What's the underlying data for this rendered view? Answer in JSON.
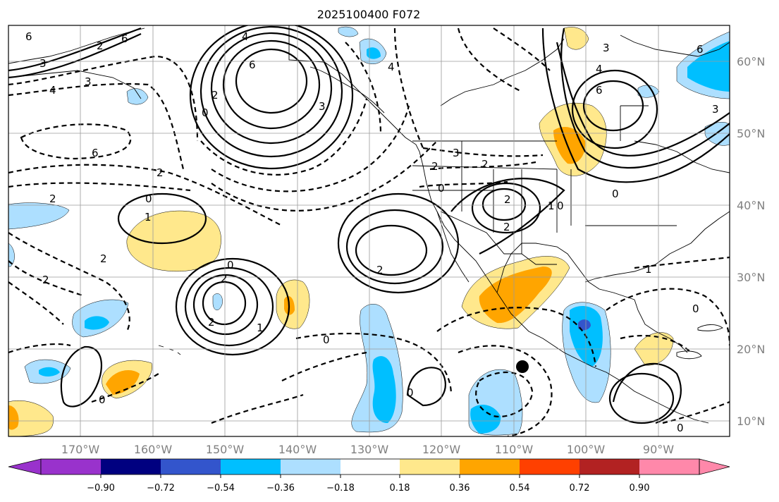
{
  "title": "2025100400 F072",
  "colors": {
    "purple": "#9932cc",
    "navy": "#000080",
    "royal": "#3355cc",
    "cyan": "#00bfff",
    "lightblue": "#addfff",
    "white": "#ffffff",
    "yellow": "#ffe88c",
    "orange": "#ffa500",
    "redorange": "#ff4000",
    "darkred": "#b22222",
    "pink": "#ff88aa"
  },
  "lon_labels": [
    "170°W",
    "160°W",
    "150°W",
    "140°W",
    "130°W",
    "120°W",
    "110°W",
    "100°W",
    "90°W"
  ],
  "lat_labels": [
    "60°N",
    "50°N",
    "40°N",
    "30°N",
    "20°N",
    "10°N"
  ],
  "colorbar": {
    "ticks": [
      "−0.90",
      "−0.72",
      "−0.54",
      "−0.36",
      "−0.18",
      "0.18",
      "0.36",
      "0.54",
      "0.72",
      "0.90"
    ],
    "values": [
      -0.9,
      -0.72,
      -0.54,
      -0.36,
      -0.18,
      0.18,
      0.36,
      0.54,
      0.72,
      0.9
    ]
  },
  "contour_labels": {
    "l6a": "6",
    "l3a": "3",
    "l4a": "4",
    "l3b": "3",
    "l2a": "2",
    "l6b": "6",
    "l4b": "4",
    "l6c": "6",
    "l3c": "3",
    "l0a": "0",
    "l2b": "2",
    "l4c": "4",
    "l3d": "3",
    "l6d": "6",
    "l4d": "4",
    "l6e": "6",
    "l3e": "3",
    "l6f": "6",
    "l3f": "3",
    "l2c": "2",
    "l2d": "2",
    "l0b": "0",
    "l2e": "2",
    "l1a": "1",
    "l0c": "0",
    "l2f": "2",
    "l2g": "2",
    "l2h": "2",
    "l2i": "2",
    "l1b": "1",
    "l0d": "0",
    "l2j": "2",
    "l0e": "0",
    "l1c": "1",
    "l2k": "2",
    "l2l": "2",
    "l0f": "0",
    "l0g": "0",
    "l0h": "0",
    "l1d": "1",
    "l0i": "0",
    "l0j": "0",
    "l0k": "0",
    "l2m": "2"
  }
}
